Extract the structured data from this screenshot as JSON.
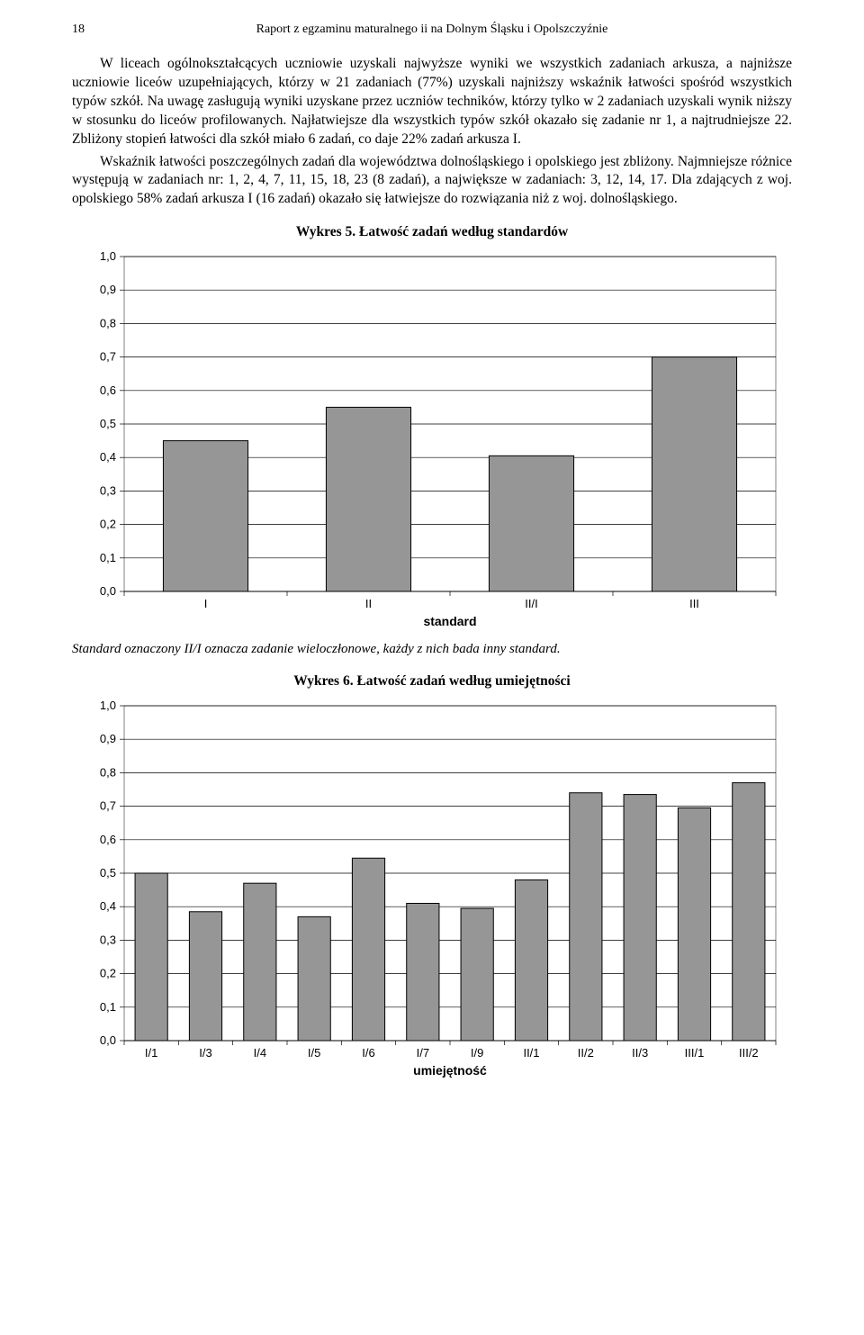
{
  "header": {
    "page_number": "18",
    "running_title": "Raport z egzaminu maturalnego ii na Dolnym Śląsku i Opolszczyźnie"
  },
  "paragraphs": {
    "p1": "W liceach ogólnokształcących uczniowie uzyskali najwyższe wyniki we wszystkich zadaniach arkusza, a najniższe uczniowie liceów uzupełniających, którzy w 21 zadaniach (77%) uzyskali najniższy wskaźnik łatwości spośród wszystkich typów szkół. Na uwagę zasługują wyniki uzyskane przez uczniów techników, którzy tylko w 2 zadaniach uzyskali wynik niższy w stosunku do liceów profilowanych. Najłatwiejsze dla wszystkich typów szkół okazało się zadanie nr 1, a najtrudniejsze 22. Zbliżony stopień łatwości dla szkół miało 6 zadań, co daje 22% zadań arkusza I.",
    "p2": "Wskaźnik łatwości poszczególnych zadań dla województwa dolnośląskiego i opolskiego jest zbliżony. Najmniejsze różnice występują w zadaniach nr: 1, 2, 4, 7, 11, 15, 18, 23 (8 zadań), a największe w zadaniach: 3, 12, 14, 17. Dla zdających z woj. opolskiego 58% zadań arkusza I (16 zadań) okazało się łatwiejsze do rozwiązania niż z woj. dolnośląskiego."
  },
  "chart5": {
    "type": "bar",
    "title": "Wykres 5. Łatwość zadań według standardów",
    "categories": [
      "I",
      "II",
      "II/I",
      "III"
    ],
    "values": [
      0.45,
      0.55,
      0.405,
      0.7
    ],
    "ylim": [
      0.0,
      1.0
    ],
    "ytick_step": 0.1,
    "yticks": [
      "0,0",
      "0,1",
      "0,2",
      "0,3",
      "0,4",
      "0,5",
      "0,6",
      "0,7",
      "0,8",
      "0,9",
      "1,0"
    ],
    "bar_fill": "#969696",
    "bar_stroke": "#000000",
    "plot_bg": "#ffffff",
    "plot_border": "#808080",
    "grid_color": "#000000",
    "tick_font_size": 13,
    "label_font_size": 14,
    "x_axis_title": "standard",
    "bar_rel_width": 0.52,
    "caption_below": "Standard oznaczony II/I oznacza zadanie wieloczłonowe, każdy z nich bada inny standard."
  },
  "chart6": {
    "type": "bar",
    "title": "Wykres 6. Łatwość zadań według umiejętności",
    "categories": [
      "I/1",
      "I/3",
      "I/4",
      "I/5",
      "I/6",
      "I/7",
      "I/9",
      "II/1",
      "II/2",
      "II/3",
      "III/1",
      "III/2"
    ],
    "values": [
      0.5,
      0.385,
      0.47,
      0.37,
      0.545,
      0.41,
      0.395,
      0.48,
      0.74,
      0.735,
      0.695,
      0.77
    ],
    "ylim": [
      0.0,
      1.0
    ],
    "ytick_step": 0.1,
    "yticks": [
      "0,0",
      "0,1",
      "0,2",
      "0,3",
      "0,4",
      "0,5",
      "0,6",
      "0,7",
      "0,8",
      "0,9",
      "1,0"
    ],
    "bar_fill": "#969696",
    "bar_stroke": "#000000",
    "plot_bg": "#ffffff",
    "plot_border": "#808080",
    "grid_color": "#000000",
    "tick_font_size": 13,
    "label_font_size": 14,
    "x_axis_title": "umiejętność",
    "bar_rel_width": 0.6
  }
}
